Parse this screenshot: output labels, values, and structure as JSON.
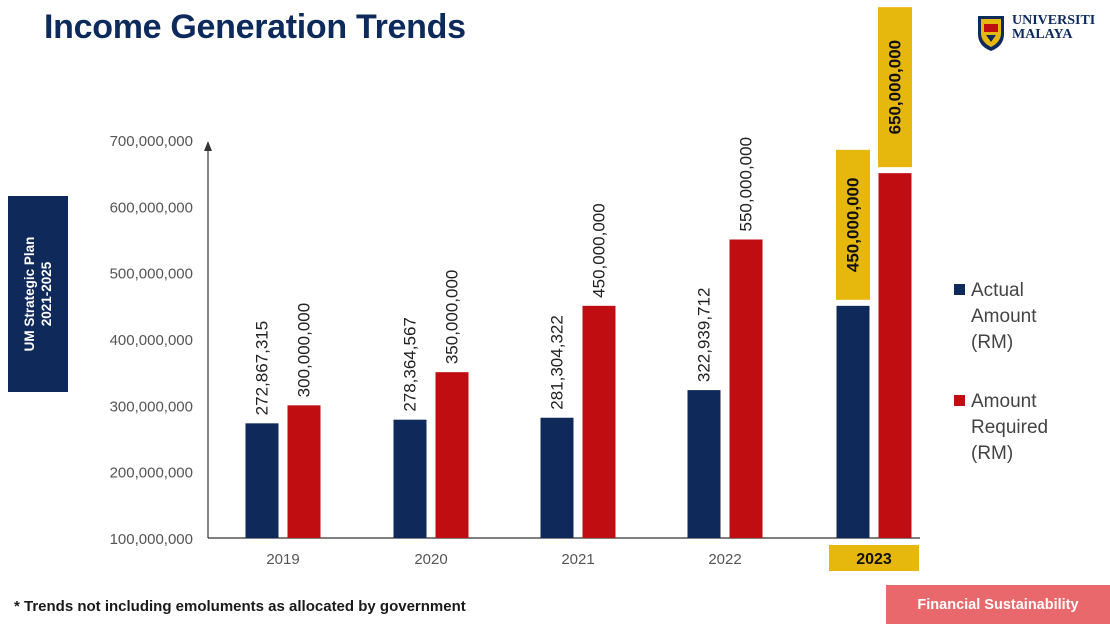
{
  "title": "Income Generation Trends",
  "logo": {
    "line1": "UNIVERSITI",
    "line2": "MALAYA"
  },
  "side_label": {
    "line1": "UM Strategic Plan",
    "line2": "2021-2025"
  },
  "footnote": "* Trends not including emoluments as allocated by government",
  "badge": "Financial Sustainability",
  "colors": {
    "title": "#0d2a5c",
    "actual": "#0f2a5a",
    "required": "#c00d12",
    "highlight": "#e6b70c",
    "badge": "#e8686c"
  },
  "chart_data": {
    "type": "bar",
    "categories": [
      "2019",
      "2020",
      "2021",
      "2022",
      "2023"
    ],
    "highlighted_category": "2023",
    "series": [
      {
        "name": "Actual Amount (RM)",
        "values": [
          272867315,
          278364567,
          281304322,
          322939712,
          450000000
        ]
      },
      {
        "name": "Amount Required (RM)",
        "values": [
          300000000,
          350000000,
          450000000,
          550000000,
          650000000
        ]
      }
    ],
    "data_labels": {
      "Actual Amount (RM)": [
        "272,867,315",
        "278,364,567",
        "281,304,322",
        "322,939,712",
        "450,000,000"
      ],
      "Amount Required (RM)": [
        "300,000,000",
        "350,000,000",
        "450,000,000",
        "550,000,000",
        "650,000,000"
      ]
    },
    "y_ticks": [
      "100,000,000",
      "200,000,000",
      "300,000,000",
      "400,000,000",
      "500,000,000",
      "600,000,000",
      "700,000,000"
    ],
    "y_tick_values": [
      100000000,
      200000000,
      300000000,
      400000000,
      500000000,
      600000000,
      700000000
    ],
    "ylim": [
      100000000,
      700000000
    ],
    "grid": false,
    "legend_position": "right",
    "legend": [
      {
        "lines": [
          "Actual",
          "Amount",
          "(RM)"
        ]
      },
      {
        "lines": [
          "Amount",
          "Required",
          "(RM)"
        ]
      }
    ]
  }
}
